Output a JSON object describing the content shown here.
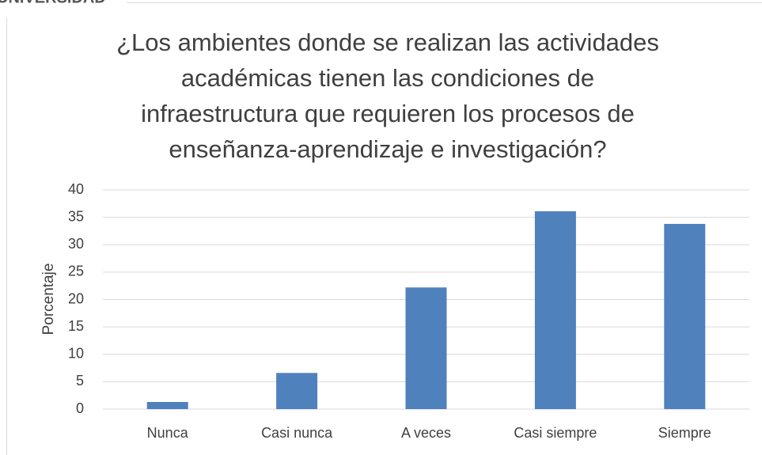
{
  "chart_data": {
    "type": "bar",
    "header_text": "UNIVERSIDAD",
    "title": [
      "¿Los ambientes donde se realizan las actividades",
      "académicas tienen las condiciones de",
      "infraestructura que requieren los procesos de",
      "enseñanza-aprendizaje e investigación?"
    ],
    "ylabel": "Porcentaje",
    "categories": [
      "Nunca",
      "Casi nunca",
      "A veces",
      "Casi siempre",
      "Siempre"
    ],
    "values": [
      1.3,
      6.6,
      22.2,
      36.1,
      33.8
    ],
    "color": "#4f81bd",
    "ylim": [
      0,
      40
    ],
    "yticks": [
      0,
      5,
      10,
      15,
      20,
      25,
      30,
      35,
      40
    ],
    "grid": true
  }
}
